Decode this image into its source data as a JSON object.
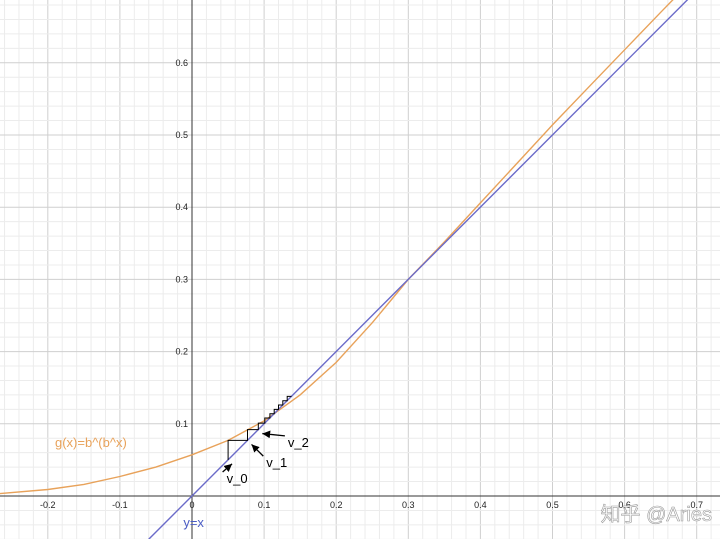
{
  "chart_data": {
    "type": "line",
    "title": "",
    "xlabel": "",
    "ylabel": "",
    "xlim": [
      -0.27,
      0.73
    ],
    "ylim": [
      -0.06,
      0.69
    ],
    "grid": true,
    "x_ticks": [
      -0.2,
      -0.1,
      0,
      0.1,
      0.2,
      0.3,
      0.4,
      0.5,
      0.6,
      0.7
    ],
    "x_tick_labels": [
      "-0.2",
      "-0.1",
      "0",
      "0.1",
      "0.2",
      "0.3",
      "0.4",
      "0.5",
      "0.6",
      "0.7"
    ],
    "y_ticks": [
      0.1,
      0.2,
      0.3,
      0.4,
      0.5,
      0.6
    ],
    "y_tick_labels": [
      "0.1",
      "0.2",
      "0.3",
      "0.4",
      "0.5",
      "0.6"
    ],
    "series": [
      {
        "name": "g(x)=b^(b^x)",
        "color": "#e8a25a",
        "x": [
          -0.27,
          -0.2,
          -0.15,
          -0.1,
          -0.05,
          0,
          0.05,
          0.1,
          0.15,
          0.2,
          0.25,
          0.3,
          0.35,
          0.4,
          0.45,
          0.5,
          0.55,
          0.6,
          0.65,
          0.7
        ],
        "y": [
          0.003,
          0.009,
          0.016,
          0.027,
          0.04,
          0.057,
          0.077,
          0.104,
          0.14,
          0.185,
          0.24,
          0.3,
          0.352,
          0.406,
          0.46,
          0.514,
          0.566,
          0.618,
          0.67,
          0.721
        ]
      },
      {
        "name": "y=x",
        "color": "#6b6bc9",
        "x": [
          -0.06,
          0.73
        ],
        "y": [
          -0.06,
          0.73
        ]
      }
    ],
    "cobweb": {
      "color": "#000000",
      "x": [
        0.05,
        0.05,
        0.077,
        0.077,
        0.092,
        0.092,
        0.101,
        0.101,
        0.108,
        0.108,
        0.114,
        0.114,
        0.12,
        0.12,
        0.126,
        0.126,
        0.132,
        0.132,
        0.138
      ],
      "y": [
        0.05,
        0.077,
        0.077,
        0.092,
        0.092,
        0.101,
        0.101,
        0.108,
        0.108,
        0.114,
        0.114,
        0.12,
        0.12,
        0.126,
        0.126,
        0.132,
        0.132,
        0.138,
        0.138
      ]
    },
    "annotations": [
      {
        "text": "v_0",
        "x": 0.048,
        "y": 0.018,
        "arrow_to": [
          0.05,
          0.05
        ]
      },
      {
        "text": "v_1",
        "x": 0.103,
        "y": 0.04,
        "arrow_to": [
          0.077,
          0.077
        ]
      },
      {
        "text": "v_2",
        "x": 0.133,
        "y": 0.068,
        "arrow_to": [
          0.092,
          0.092
        ]
      }
    ],
    "curve_labels": [
      {
        "text": "g(x)=b^(b^x)",
        "series": 0,
        "x": -0.19,
        "y": 0.068,
        "color": "#e8a25a"
      },
      {
        "text": "y=x",
        "series": 1,
        "x": -0.012,
        "y": -0.043,
        "color": "#4a5cc4"
      }
    ]
  },
  "watermark": "知乎 @Aries"
}
